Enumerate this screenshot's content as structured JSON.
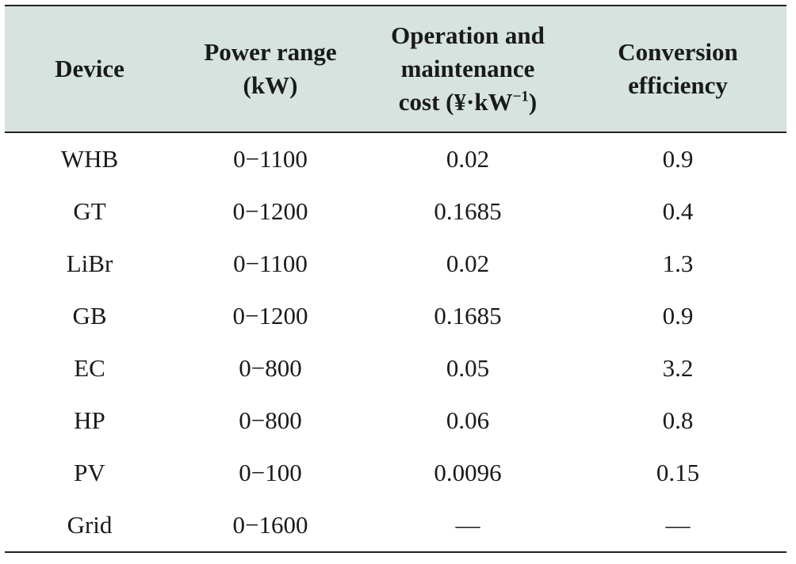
{
  "table": {
    "headers": {
      "device": "Device",
      "power_range": {
        "line1": "Power range",
        "line2": "(kW)"
      },
      "om_cost": {
        "line1": "Operation and",
        "line2": "maintenance",
        "line3_prefix": "cost (¥·kW",
        "line3_sup": "−1",
        "line3_suffix": ")"
      },
      "conversion": {
        "line1": "Conversion",
        "line2": "efficiency"
      }
    },
    "rows": [
      {
        "device": "WHB",
        "power_range": "0−1100",
        "om_cost": "0.02",
        "efficiency": "0.9"
      },
      {
        "device": "GT",
        "power_range": "0−1200",
        "om_cost": "0.1685",
        "efficiency": "0.4"
      },
      {
        "device": "LiBr",
        "power_range": "0−1100",
        "om_cost": "0.02",
        "efficiency": "1.3"
      },
      {
        "device": "GB",
        "power_range": "0−1200",
        "om_cost": "0.1685",
        "efficiency": "0.9"
      },
      {
        "device": "EC",
        "power_range": "0−800",
        "om_cost": "0.05",
        "efficiency": "3.2"
      },
      {
        "device": "HP",
        "power_range": "0−800",
        "om_cost": "0.06",
        "efficiency": "0.8"
      },
      {
        "device": "PV",
        "power_range": "0−100",
        "om_cost": "0.0096",
        "efficiency": "0.15"
      },
      {
        "device": "Grid",
        "power_range": "0−1600",
        "om_cost": "—",
        "efficiency": "—"
      }
    ]
  },
  "colors": {
    "header_background": "#d6e3df",
    "rule": "#222222",
    "text": "#1a1a1a"
  }
}
